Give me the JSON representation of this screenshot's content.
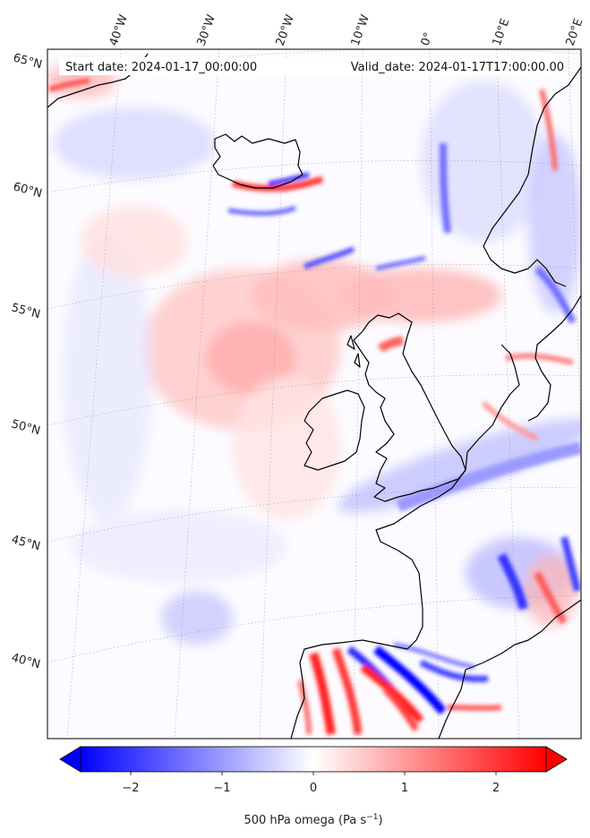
{
  "header": {
    "start_date": "Start date: 2024-01-17_00:00:00",
    "valid_date": "Valid_date: 2024-01-17T17:00:00.00"
  },
  "longitude_labels": [
    "40°W",
    "30°W",
    "20°W",
    "10°W",
    "0°",
    "10°E",
    "20°E"
  ],
  "latitude_labels": [
    "65°N",
    "60°N",
    "55°N",
    "50°N",
    "45°N",
    "40°N"
  ],
  "colorbar": {
    "ticks": [
      "−2",
      "−1",
      "0",
      "1",
      "2"
    ],
    "label_main": "500 hPa omega (Pa s",
    "label_exp": "−1",
    "label_close": ")",
    "vmin": -2.7,
    "vmax": 2.7,
    "extend": "both",
    "colormap": "bwr",
    "colors": {
      "low": "#0000ff",
      "mid": "#ffffff",
      "high": "#ff0000"
    }
  },
  "map": {
    "variable": "500 hPa omega",
    "coastline_color": "#000000",
    "gridline_style": "dotted"
  }
}
